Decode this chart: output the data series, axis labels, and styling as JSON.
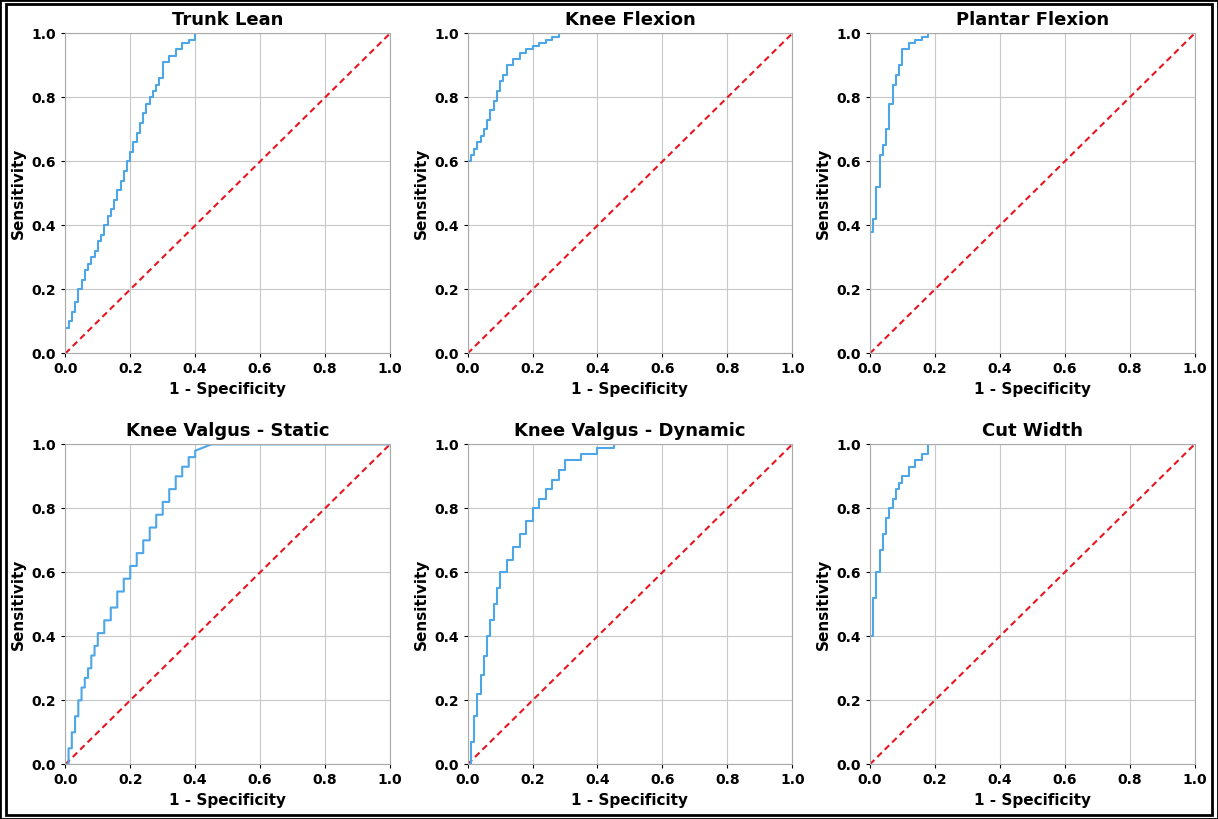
{
  "titles": [
    "Trunk Lean",
    "Knee Flexion",
    "Plantar Flexion",
    "Knee Valgus - Static",
    "Knee Valgus - Dynamic",
    "Cut Width"
  ],
  "xlabel": "1 - Specificity",
  "ylabel": "Sensitivity",
  "roc_curves": {
    "Trunk Lean": {
      "fpr": [
        0.0,
        0.0,
        0.01,
        0.01,
        0.02,
        0.02,
        0.03,
        0.03,
        0.04,
        0.04,
        0.05,
        0.05,
        0.06,
        0.06,
        0.07,
        0.07,
        0.08,
        0.08,
        0.09,
        0.09,
        0.1,
        0.1,
        0.11,
        0.11,
        0.12,
        0.12,
        0.13,
        0.13,
        0.14,
        0.14,
        0.15,
        0.15,
        0.16,
        0.16,
        0.17,
        0.17,
        0.18,
        0.18,
        0.19,
        0.19,
        0.2,
        0.2,
        0.21,
        0.21,
        0.22,
        0.22,
        0.23,
        0.23,
        0.24,
        0.24,
        0.25,
        0.25,
        0.26,
        0.26,
        0.27,
        0.27,
        0.28,
        0.28,
        0.29,
        0.29,
        0.3,
        0.3,
        0.32,
        0.32,
        0.34,
        0.34,
        0.36,
        0.36,
        0.38,
        0.38,
        0.4,
        0.4,
        0.45,
        0.5,
        0.55,
        0.6,
        0.65,
        1.0
      ],
      "tpr": [
        0.0,
        0.08,
        0.08,
        0.1,
        0.1,
        0.13,
        0.13,
        0.16,
        0.16,
        0.2,
        0.2,
        0.23,
        0.23,
        0.26,
        0.26,
        0.28,
        0.28,
        0.3,
        0.3,
        0.32,
        0.32,
        0.35,
        0.35,
        0.37,
        0.37,
        0.4,
        0.4,
        0.43,
        0.43,
        0.45,
        0.45,
        0.48,
        0.48,
        0.51,
        0.51,
        0.54,
        0.54,
        0.57,
        0.57,
        0.6,
        0.6,
        0.63,
        0.63,
        0.66,
        0.66,
        0.69,
        0.69,
        0.72,
        0.72,
        0.75,
        0.75,
        0.78,
        0.78,
        0.8,
        0.8,
        0.82,
        0.82,
        0.84,
        0.84,
        0.86,
        0.86,
        0.91,
        0.91,
        0.93,
        0.93,
        0.95,
        0.95,
        0.97,
        0.97,
        0.98,
        0.98,
        1.0,
        1.0,
        1.0,
        1.0,
        1.0,
        1.0,
        1.0
      ]
    },
    "Knee Flexion": {
      "fpr": [
        0.0,
        0.0,
        0.01,
        0.01,
        0.02,
        0.02,
        0.03,
        0.03,
        0.04,
        0.04,
        0.05,
        0.05,
        0.06,
        0.06,
        0.07,
        0.07,
        0.08,
        0.08,
        0.09,
        0.09,
        0.1,
        0.1,
        0.11,
        0.11,
        0.12,
        0.12,
        0.14,
        0.14,
        0.16,
        0.16,
        0.18,
        0.18,
        0.2,
        0.2,
        0.22,
        0.22,
        0.24,
        0.24,
        0.26,
        0.26,
        0.28,
        0.28,
        0.3,
        0.3,
        0.35,
        0.4,
        0.5,
        0.6,
        0.7,
        0.8,
        0.9,
        1.0
      ],
      "tpr": [
        0.0,
        0.6,
        0.6,
        0.62,
        0.62,
        0.64,
        0.64,
        0.66,
        0.66,
        0.68,
        0.68,
        0.7,
        0.7,
        0.73,
        0.73,
        0.76,
        0.76,
        0.79,
        0.79,
        0.82,
        0.82,
        0.85,
        0.85,
        0.87,
        0.87,
        0.9,
        0.9,
        0.92,
        0.92,
        0.94,
        0.94,
        0.95,
        0.95,
        0.96,
        0.96,
        0.97,
        0.97,
        0.98,
        0.98,
        0.99,
        0.99,
        1.0,
        1.0,
        1.0,
        1.0,
        1.0,
        1.0,
        1.0,
        1.0,
        1.0,
        1.0,
        1.0
      ]
    },
    "Plantar Flexion": {
      "fpr": [
        0.0,
        0.0,
        0.01,
        0.01,
        0.02,
        0.02,
        0.03,
        0.03,
        0.04,
        0.04,
        0.05,
        0.05,
        0.06,
        0.06,
        0.07,
        0.07,
        0.08,
        0.08,
        0.09,
        0.09,
        0.1,
        0.1,
        0.12,
        0.12,
        0.14,
        0.14,
        0.16,
        0.16,
        0.18,
        0.18,
        0.2,
        0.2,
        0.25,
        0.3,
        0.4,
        0.5,
        0.6,
        0.7,
        0.8,
        0.9,
        1.0
      ],
      "tpr": [
        0.0,
        0.38,
        0.38,
        0.42,
        0.42,
        0.52,
        0.52,
        0.62,
        0.62,
        0.65,
        0.65,
        0.7,
        0.7,
        0.78,
        0.78,
        0.84,
        0.84,
        0.87,
        0.87,
        0.9,
        0.9,
        0.95,
        0.95,
        0.97,
        0.97,
        0.98,
        0.98,
        0.99,
        0.99,
        1.0,
        1.0,
        1.0,
        1.0,
        1.0,
        1.0,
        1.0,
        1.0,
        1.0,
        1.0,
        1.0,
        1.0
      ]
    },
    "Knee Valgus - Static": {
      "fpr": [
        0.0,
        0.0,
        0.01,
        0.01,
        0.02,
        0.02,
        0.03,
        0.03,
        0.04,
        0.04,
        0.05,
        0.05,
        0.06,
        0.06,
        0.07,
        0.07,
        0.08,
        0.08,
        0.09,
        0.09,
        0.1,
        0.1,
        0.12,
        0.12,
        0.14,
        0.14,
        0.16,
        0.16,
        0.18,
        0.18,
        0.2,
        0.2,
        0.22,
        0.22,
        0.24,
        0.24,
        0.26,
        0.26,
        0.28,
        0.28,
        0.3,
        0.3,
        0.32,
        0.32,
        0.34,
        0.34,
        0.36,
        0.36,
        0.38,
        0.38,
        0.4,
        0.4,
        0.45,
        0.5,
        0.6,
        0.7,
        0.8,
        0.9,
        1.0
      ],
      "tpr": [
        0.0,
        0.0,
        0.0,
        0.05,
        0.05,
        0.1,
        0.1,
        0.15,
        0.15,
        0.2,
        0.2,
        0.24,
        0.24,
        0.27,
        0.27,
        0.3,
        0.3,
        0.34,
        0.34,
        0.37,
        0.37,
        0.41,
        0.41,
        0.45,
        0.45,
        0.49,
        0.49,
        0.54,
        0.54,
        0.58,
        0.58,
        0.62,
        0.62,
        0.66,
        0.66,
        0.7,
        0.7,
        0.74,
        0.74,
        0.78,
        0.78,
        0.82,
        0.82,
        0.86,
        0.86,
        0.9,
        0.9,
        0.93,
        0.93,
        0.96,
        0.96,
        0.98,
        1.0,
        1.0,
        1.0,
        1.0,
        1.0,
        1.0,
        1.0
      ]
    },
    "Knee Valgus - Dynamic": {
      "fpr": [
        0.0,
        0.0,
        0.01,
        0.01,
        0.02,
        0.02,
        0.03,
        0.03,
        0.04,
        0.04,
        0.05,
        0.05,
        0.06,
        0.06,
        0.07,
        0.07,
        0.08,
        0.08,
        0.09,
        0.09,
        0.1,
        0.1,
        0.12,
        0.12,
        0.14,
        0.14,
        0.16,
        0.16,
        0.18,
        0.18,
        0.2,
        0.2,
        0.22,
        0.22,
        0.24,
        0.24,
        0.26,
        0.26,
        0.28,
        0.28,
        0.3,
        0.3,
        0.35,
        0.35,
        0.4,
        0.4,
        0.45,
        0.45,
        0.5,
        0.5,
        0.6,
        0.7,
        0.8,
        0.9,
        1.0
      ],
      "tpr": [
        0.0,
        0.0,
        0.0,
        0.07,
        0.07,
        0.15,
        0.15,
        0.22,
        0.22,
        0.28,
        0.28,
        0.34,
        0.34,
        0.4,
        0.4,
        0.45,
        0.45,
        0.5,
        0.5,
        0.55,
        0.55,
        0.6,
        0.6,
        0.64,
        0.64,
        0.68,
        0.68,
        0.72,
        0.72,
        0.76,
        0.76,
        0.8,
        0.8,
        0.83,
        0.83,
        0.86,
        0.86,
        0.89,
        0.89,
        0.92,
        0.92,
        0.95,
        0.95,
        0.97,
        0.97,
        0.99,
        0.99,
        1.0,
        1.0,
        1.0,
        1.0,
        1.0,
        1.0,
        1.0,
        1.0
      ]
    },
    "Cut Width": {
      "fpr": [
        0.0,
        0.0,
        0.01,
        0.01,
        0.02,
        0.02,
        0.03,
        0.03,
        0.04,
        0.04,
        0.05,
        0.05,
        0.06,
        0.06,
        0.07,
        0.07,
        0.08,
        0.08,
        0.09,
        0.09,
        0.1,
        0.1,
        0.12,
        0.12,
        0.14,
        0.14,
        0.16,
        0.16,
        0.18,
        0.18,
        0.2,
        0.3,
        0.4,
        0.5,
        0.6,
        0.7,
        0.8,
        0.9,
        1.0
      ],
      "tpr": [
        0.0,
        0.4,
        0.4,
        0.52,
        0.52,
        0.6,
        0.6,
        0.67,
        0.67,
        0.72,
        0.72,
        0.77,
        0.77,
        0.8,
        0.8,
        0.83,
        0.83,
        0.86,
        0.86,
        0.88,
        0.88,
        0.9,
        0.9,
        0.93,
        0.93,
        0.95,
        0.95,
        0.97,
        0.97,
        1.0,
        1.0,
        1.0,
        1.0,
        1.0,
        1.0,
        1.0,
        1.0,
        1.0,
        1.0
      ]
    }
  },
  "roc_color": "#4DA6E8",
  "diag_color": "#E8141E",
  "grid_color": "#C8C8C8",
  "bg_color": "#FFFFFF",
  "title_fontsize": 13,
  "label_fontsize": 11,
  "tick_fontsize": 10,
  "roc_linewidth": 1.5,
  "diag_linewidth": 1.5
}
